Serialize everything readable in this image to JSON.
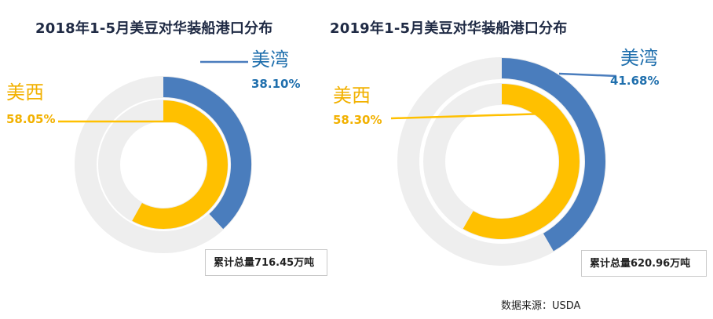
{
  "chart_data": [
    {
      "type": "pie",
      "title": "2018年1-5月美豆对华装船港口分布",
      "categories": [
        "美湾",
        "美西"
      ],
      "values": [
        38.1,
        58.05
      ],
      "value_labels": [
        "38.10%",
        "58.05%"
      ],
      "total_label": "累计总量716.45万吨"
    },
    {
      "type": "pie",
      "title": "2019年1-5月美豆对华装船港口分布",
      "categories": [
        "美湾",
        "美西"
      ],
      "values": [
        41.68,
        58.3
      ],
      "value_labels": [
        "41.68%",
        "58.30%"
      ],
      "total_label": "累计总量620.96万吨"
    }
  ],
  "colors": {
    "美湾": "#4a7dbd",
    "美西": "#ffc000",
    "track": "#eeeeee",
    "label_美湾": "#1f6fad",
    "label_美西": "#f2b100"
  },
  "source_note": "数据来源：USDA"
}
